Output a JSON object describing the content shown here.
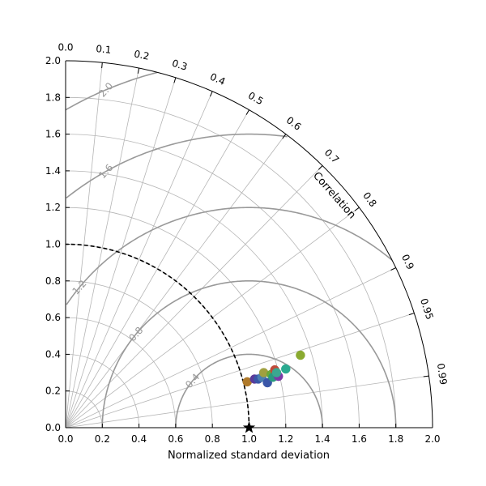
{
  "chart_data": {
    "type": "scatter",
    "subtype": "taylor-diagram",
    "xlabel": "Normalized standard deviation",
    "ylabel": "",
    "corr_axis_label": "Correlation",
    "std_range": [
      0,
      2.0
    ],
    "std_ticks": [
      "0.0",
      "0.2",
      "0.4",
      "0.6",
      "0.8",
      "1.0",
      "1.2",
      "1.4",
      "1.6",
      "1.8",
      "2.0"
    ],
    "std_tick_values": [
      0,
      0.2,
      0.4,
      0.6,
      0.8,
      1.0,
      1.2,
      1.4,
      1.6,
      1.8,
      2.0
    ],
    "corr_ticks": [
      {
        "value": 0.0,
        "label": "0.0"
      },
      {
        "value": 0.1,
        "label": "0.1"
      },
      {
        "value": 0.2,
        "label": "0.2"
      },
      {
        "value": 0.3,
        "label": "0.3"
      },
      {
        "value": 0.4,
        "label": "0.4"
      },
      {
        "value": 0.5,
        "label": "0.5"
      },
      {
        "value": 0.6,
        "label": "0.6"
      },
      {
        "value": 0.7,
        "label": "0.7"
      },
      {
        "value": 0.8,
        "label": "0.8"
      },
      {
        "value": 0.9,
        "label": "0.9"
      },
      {
        "value": 0.95,
        "label": "0.95"
      },
      {
        "value": 0.99,
        "label": "0.99"
      }
    ],
    "std_arcs": [
      0.4,
      1.0,
      1.4,
      1.8
    ],
    "reference": {
      "std": 1.0,
      "marker": "star",
      "color": "#000000"
    },
    "rms_contours": [
      {
        "value": 0.4,
        "label": "0.4"
      },
      {
        "value": 0.8,
        "label": "0.8"
      },
      {
        "value": 1.2,
        "label": "1.2"
      },
      {
        "value": 1.6,
        "label": "1.6"
      },
      {
        "value": 2.0,
        "label": "2.0"
      }
    ],
    "grid": true,
    "points": [
      {
        "x": 0.99,
        "y": 0.25,
        "color": "#b07a2a"
      },
      {
        "x": 1.03,
        "y": 0.265,
        "color": "#5b3a9a"
      },
      {
        "x": 1.05,
        "y": 0.265,
        "color": "#3a56a8"
      },
      {
        "x": 1.07,
        "y": 0.275,
        "color": "#4a7fb0"
      },
      {
        "x": 1.08,
        "y": 0.3,
        "color": "#a0a040"
      },
      {
        "x": 1.1,
        "y": 0.245,
        "color": "#3a56a8"
      },
      {
        "x": 1.12,
        "y": 0.29,
        "color": "#6aa838"
      },
      {
        "x": 1.13,
        "y": 0.275,
        "color": "#2a9a80"
      },
      {
        "x": 1.14,
        "y": 0.315,
        "color": "#c04a3a"
      },
      {
        "x": 1.16,
        "y": 0.28,
        "color": "#7a3aa8"
      },
      {
        "x": 1.15,
        "y": 0.3,
        "color": "#3aa890"
      },
      {
        "x": 1.2,
        "y": 0.32,
        "color": "#2aaa90"
      },
      {
        "x": 1.28,
        "y": 0.395,
        "color": "#8aaa30"
      }
    ]
  }
}
